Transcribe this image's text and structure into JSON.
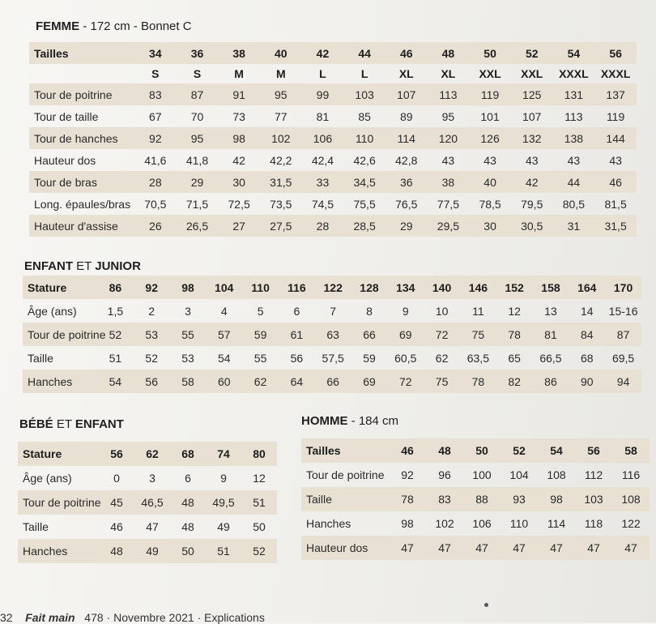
{
  "femme": {
    "title_bold": "FEMME",
    "title_rest": " - 172 cm - Bonnet C",
    "header_label": "Tailles",
    "sizes": [
      "34",
      "36",
      "38",
      "40",
      "42",
      "44",
      "46",
      "48",
      "50",
      "52",
      "54",
      "56"
    ],
    "letters": [
      "S",
      "S",
      "M",
      "M",
      "L",
      "L",
      "XL",
      "XL",
      "XXL",
      "XXL",
      "XXXL",
      "XXXL"
    ],
    "rows": [
      {
        "label": "Tour de poitrine",
        "values": [
          "83",
          "87",
          "91",
          "95",
          "99",
          "103",
          "107",
          "113",
          "119",
          "125",
          "131",
          "137"
        ]
      },
      {
        "label": "Tour de taille",
        "values": [
          "67",
          "70",
          "73",
          "77",
          "81",
          "85",
          "89",
          "95",
          "101",
          "107",
          "113",
          "119"
        ]
      },
      {
        "label": "Tour de hanches",
        "values": [
          "92",
          "95",
          "98",
          "102",
          "106",
          "110",
          "114",
          "120",
          "126",
          "132",
          "138",
          "144"
        ]
      },
      {
        "label": "Hauteur dos",
        "values": [
          "41,6",
          "41,8",
          "42",
          "42,2",
          "42,4",
          "42,6",
          "42,8",
          "43",
          "43",
          "43",
          "43",
          "43"
        ]
      },
      {
        "label": "Tour de bras",
        "values": [
          "28",
          "29",
          "30",
          "31,5",
          "33",
          "34,5",
          "36",
          "38",
          "40",
          "42",
          "44",
          "46"
        ]
      },
      {
        "label": "Long. épaules/bras",
        "values": [
          "70,5",
          "71,5",
          "72,5",
          "73,5",
          "74,5",
          "75,5",
          "76,5",
          "77,5",
          "78,5",
          "79,5",
          "80,5",
          "81,5"
        ]
      },
      {
        "label": "Hauteur d'assise",
        "values": [
          "26",
          "26,5",
          "27",
          "27,5",
          "28",
          "28,5",
          "29",
          "29,5",
          "30",
          "30,5",
          "31",
          "31,5"
        ]
      }
    ]
  },
  "enfant_junior": {
    "title_a": "ENFANT",
    "title_mid": " ET ",
    "title_b": "JUNIOR",
    "header_label": "Stature",
    "sizes": [
      "86",
      "92",
      "98",
      "104",
      "110",
      "116",
      "122",
      "128",
      "134",
      "140",
      "146",
      "152",
      "158",
      "164",
      "170"
    ],
    "rows": [
      {
        "label": "Âge (ans)",
        "values": [
          "1,5",
          "2",
          "3",
          "4",
          "5",
          "6",
          "7",
          "8",
          "9",
          "10",
          "11",
          "12",
          "13",
          "14",
          "15-16"
        ]
      },
      {
        "label": "Tour de poitrine",
        "values": [
          "52",
          "53",
          "55",
          "57",
          "59",
          "61",
          "63",
          "66",
          "69",
          "72",
          "75",
          "78",
          "81",
          "84",
          "87"
        ]
      },
      {
        "label": "Taille",
        "values": [
          "51",
          "52",
          "53",
          "54",
          "55",
          "56",
          "57,5",
          "59",
          "60,5",
          "62",
          "63,5",
          "65",
          "66,5",
          "68",
          "69,5"
        ]
      },
      {
        "label": "Hanches",
        "values": [
          "54",
          "56",
          "58",
          "60",
          "62",
          "64",
          "66",
          "69",
          "72",
          "75",
          "78",
          "82",
          "86",
          "90",
          "94"
        ]
      }
    ]
  },
  "bebe_enfant": {
    "title_a": "BÉBÉ",
    "title_mid": " ET ",
    "title_b": "ENFANT",
    "header_label": "Stature",
    "sizes": [
      "56",
      "62",
      "68",
      "74",
      "80"
    ],
    "rows": [
      {
        "label": "Âge (ans)",
        "values": [
          "0",
          "3",
          "6",
          "9",
          "12"
        ]
      },
      {
        "label": "Tour de poitrine",
        "values": [
          "45",
          "46,5",
          "48",
          "49,5",
          "51"
        ]
      },
      {
        "label": "Taille",
        "values": [
          "46",
          "47",
          "48",
          "49",
          "50"
        ]
      },
      {
        "label": "Hanches",
        "values": [
          "48",
          "49",
          "50",
          "51",
          "52"
        ]
      }
    ]
  },
  "homme": {
    "title_bold": "HOMME",
    "title_rest": " - 184 cm",
    "header_label": "Tailles",
    "sizes": [
      "46",
      "48",
      "50",
      "52",
      "54",
      "56",
      "58"
    ],
    "rows": [
      {
        "label": "Tour de poitrine",
        "values": [
          "92",
          "96",
          "100",
          "104",
          "108",
          "112",
          "116"
        ]
      },
      {
        "label": "Taille",
        "values": [
          "78",
          "83",
          "88",
          "93",
          "98",
          "103",
          "108"
        ]
      },
      {
        "label": "Hanches",
        "values": [
          "98",
          "102",
          "106",
          "110",
          "114",
          "118",
          "122"
        ]
      },
      {
        "label": "Hauteur dos",
        "values": [
          "47",
          "47",
          "47",
          "47",
          "47",
          "47",
          "47"
        ]
      }
    ]
  },
  "footer": {
    "page_num": "32",
    "brand": "Fait main",
    "issue": "478 · Novembre 2021 · Explications"
  }
}
